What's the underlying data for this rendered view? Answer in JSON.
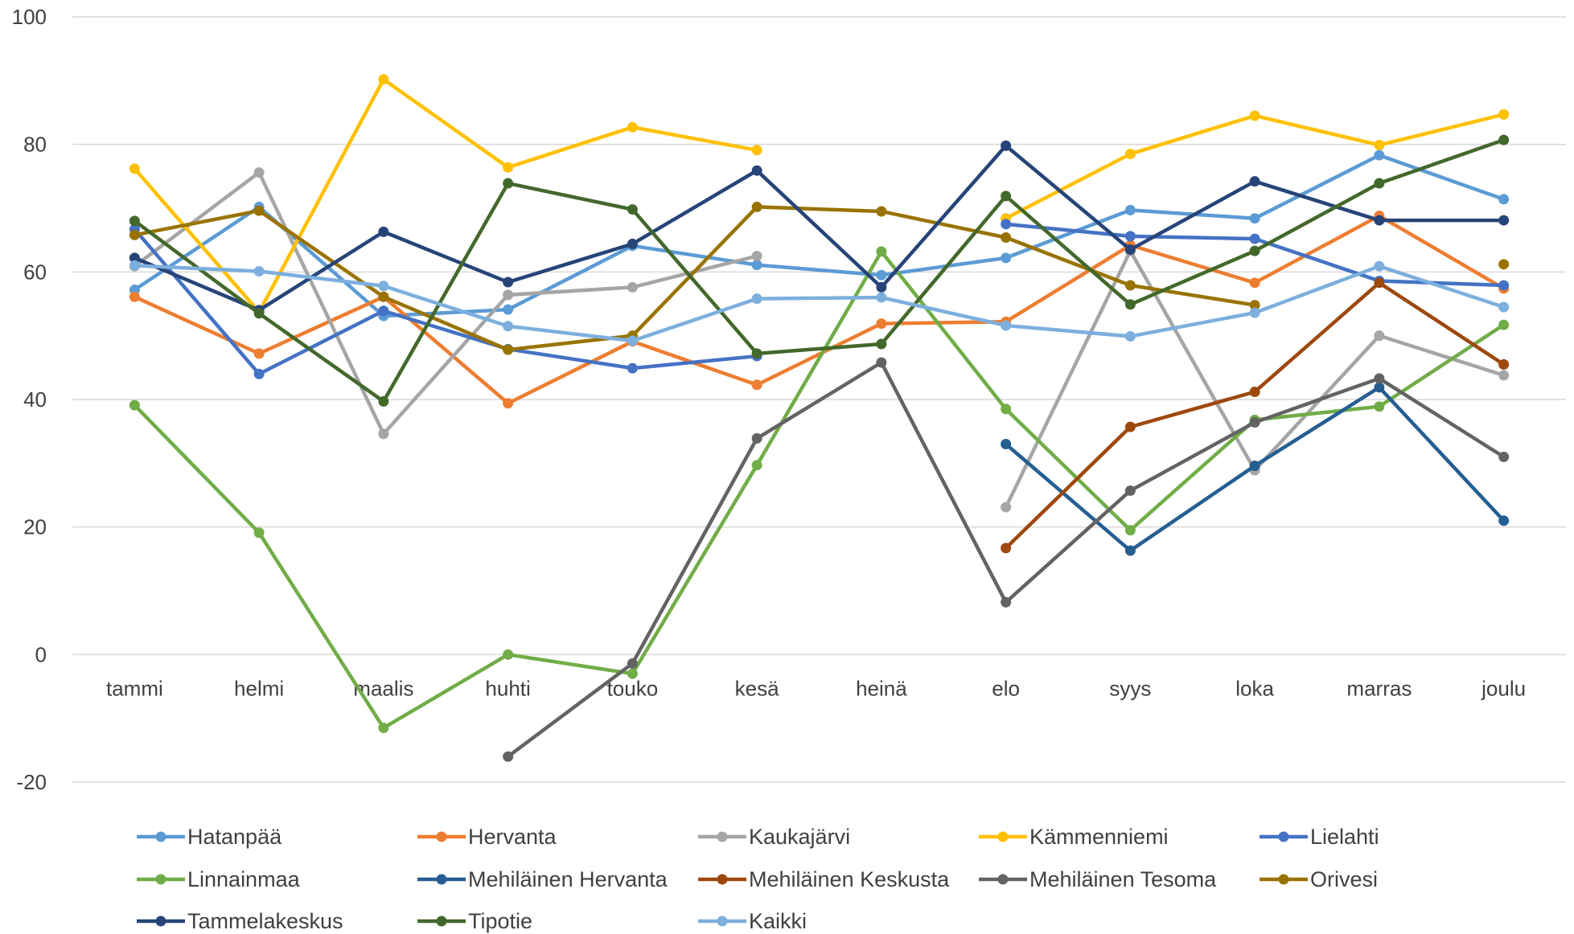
{
  "chart_data": {
    "type": "line",
    "title": "",
    "xlabel": "",
    "ylabel": "",
    "categories": [
      "tammi",
      "helmi",
      "maalis",
      "huhti",
      "touko",
      "kesä",
      "heinä",
      "elo",
      "syys",
      "loka",
      "marras",
      "joulu"
    ],
    "ylim": [
      -20,
      100
    ],
    "yticks": [
      -20,
      0,
      20,
      40,
      60,
      80,
      100
    ],
    "grid": "horizontal",
    "legend_position": "bottom",
    "series": [
      {
        "name": "Hatanpää",
        "color": "#5B9BD5",
        "values": [
          57.2,
          70.2,
          53.1,
          54.1,
          64.1,
          61.1,
          59.5,
          62.2,
          69.7,
          68.4,
          78.3,
          71.4
        ]
      },
      {
        "name": "Hervanta",
        "color": "#ED7D31",
        "values": [
          56.1,
          47.2,
          56.1,
          39.4,
          49.1,
          42.3,
          51.9,
          52.2,
          64.2,
          58.3,
          68.8,
          57.4
        ]
      },
      {
        "name": "Kaukajärvi",
        "color": "#A5A5A5",
        "values": [
          60.9,
          75.6,
          34.6,
          56.4,
          57.6,
          62.5,
          null,
          23.1,
          63.3,
          28.9,
          50.0,
          43.8
        ]
      },
      {
        "name": "Kämmenniemi",
        "color": "#FFC000",
        "values": [
          76.2,
          53.7,
          90.2,
          76.4,
          82.7,
          79.1,
          null,
          68.4,
          78.5,
          84.5,
          79.9,
          84.7
        ]
      },
      {
        "name": "Lielahti",
        "color": "#4472C4",
        "values": [
          66.7,
          44.0,
          53.9,
          47.9,
          44.9,
          46.8,
          null,
          67.5,
          65.6,
          65.2,
          58.6,
          57.9
        ]
      },
      {
        "name": "Linnainmaa",
        "color": "#70AD47",
        "values": [
          39.1,
          19.1,
          -11.5,
          0.0,
          -3.0,
          29.7,
          63.2,
          38.5,
          19.5,
          36.8,
          38.9,
          51.7
        ]
      },
      {
        "name": "Mehiläinen Hervanta",
        "color": "#255E91",
        "values": [
          null,
          null,
          null,
          null,
          null,
          null,
          null,
          33.0,
          16.3,
          29.6,
          41.9,
          21.0
        ]
      },
      {
        "name": "Mehiläinen Keskusta",
        "color": "#9E480E",
        "values": [
          null,
          null,
          null,
          null,
          null,
          null,
          null,
          16.7,
          35.7,
          41.2,
          58.3,
          45.5
        ]
      },
      {
        "name": "Mehiläinen Tesoma",
        "color": "#636363",
        "values": [
          null,
          null,
          null,
          -16.0,
          -1.4,
          33.9,
          45.8,
          8.2,
          25.7,
          36.4,
          43.3,
          31.0
        ]
      },
      {
        "name": "Orivesi",
        "color": "#997300",
        "values": [
          65.8,
          69.6,
          56.1,
          47.8,
          50.0,
          70.2,
          69.5,
          65.4,
          57.9,
          54.8,
          null,
          61.2
        ]
      },
      {
        "name": "Tammelakeskus",
        "color": "#264478",
        "values": [
          62.2,
          54.0,
          66.3,
          58.4,
          64.4,
          75.9,
          57.6,
          79.8,
          63.5,
          74.2,
          68.1,
          68.1
        ]
      },
      {
        "name": "Tipotie",
        "color": "#43682B",
        "values": [
          68.0,
          53.5,
          39.7,
          73.9,
          69.8,
          47.2,
          48.7,
          71.9,
          54.9,
          63.3,
          73.9,
          80.7
        ]
      },
      {
        "name": "Kaikki",
        "color": "#7CAFDD",
        "values": [
          61.0,
          60.1,
          57.8,
          51.5,
          49.2,
          55.8,
          56.0,
          51.6,
          49.9,
          53.6,
          60.9,
          54.5
        ]
      }
    ]
  }
}
